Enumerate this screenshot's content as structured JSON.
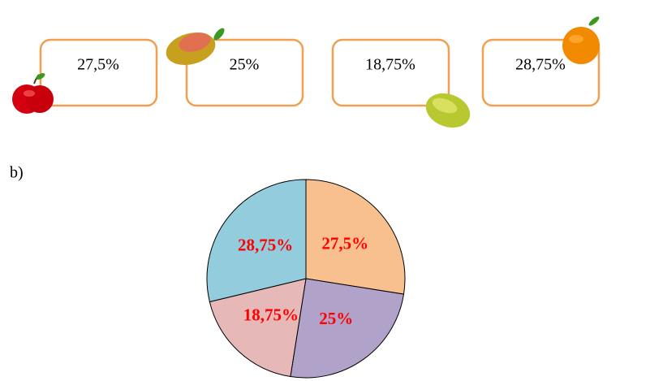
{
  "boxes": [
    {
      "label": "27,5%"
    },
    {
      "label": "25%"
    },
    {
      "label": "18,75%"
    },
    {
      "label": "28,75%"
    }
  ],
  "part_label": "b)",
  "chart_data": {
    "type": "pie",
    "values": [
      27.5,
      25,
      18.75,
      28.75
    ],
    "value_labels": [
      "27,5%",
      "25%",
      "18,75%",
      "28,75%"
    ],
    "colors": [
      "#f9c08f",
      "#b1a2c9",
      "#e6b8b7",
      "#93cddd"
    ],
    "label_color": "#ff0000"
  }
}
